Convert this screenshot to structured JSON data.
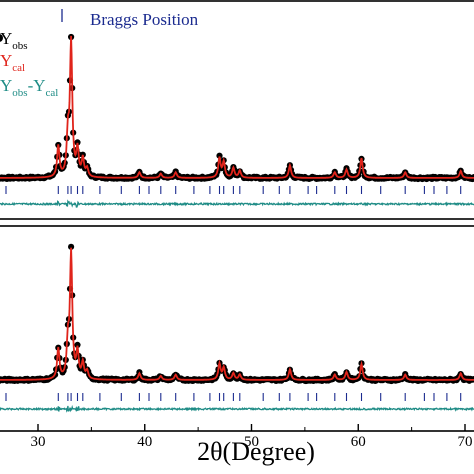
{
  "chart_data": [
    {
      "type": "line",
      "title": "",
      "legend": {
        "placement": "top-left",
        "entries": [
          {
            "label_main": "Y",
            "label_sub": "obs",
            "color": "#000000",
            "marker": "circle"
          },
          {
            "label_main": "Y",
            "label_sub": "cal",
            "color": "#e0241b",
            "marker": "line"
          },
          {
            "label_main": "Y",
            "label_sub": "obs",
            "label_mid": "-Y",
            "label_sub2": "cal",
            "color": "#1f8c86",
            "marker": "line"
          }
        ],
        "braggs_label": "Braggs Position",
        "braggs_color": "#1b2b8f"
      },
      "xlim": [
        25,
        72
      ],
      "ylim": [
        0,
        100
      ],
      "peaks": [
        {
          "x": 31.9,
          "y": 22
        },
        {
          "x": 32.8,
          "y": 28
        },
        {
          "x": 33.1,
          "y": 95
        },
        {
          "x": 33.7,
          "y": 19
        },
        {
          "x": 34.2,
          "y": 13
        },
        {
          "x": 34.6,
          "y": 6
        },
        {
          "x": 39.5,
          "y": 4
        },
        {
          "x": 41.5,
          "y": 3
        },
        {
          "x": 42.9,
          "y": 4
        },
        {
          "x": 47.0,
          "y": 14
        },
        {
          "x": 47.4,
          "y": 11
        },
        {
          "x": 48.3,
          "y": 7
        },
        {
          "x": 48.9,
          "y": 5
        },
        {
          "x": 53.6,
          "y": 9
        },
        {
          "x": 57.8,
          "y": 4
        },
        {
          "x": 58.9,
          "y": 6
        },
        {
          "x": 60.3,
          "y": 14
        },
        {
          "x": 64.4,
          "y": 4
        },
        {
          "x": 69.6,
          "y": 5
        }
      ],
      "bragg_positions": [
        26.2,
        27.0,
        31.9,
        32.8,
        33.1,
        33.7,
        34.2,
        35.8,
        37.8,
        39.5,
        40.4,
        41.5,
        42.9,
        44.6,
        46.1,
        47.0,
        47.4,
        48.3,
        48.9,
        51.1,
        52.6,
        53.6,
        55.3,
        56.1,
        57.8,
        58.9,
        60.3,
        62.1,
        64.4,
        66.2,
        67.1,
        68.3,
        69.6,
        71.0
      ]
    },
    {
      "type": "line",
      "xlabel": "2θ(Degree)",
      "xlim": [
        25,
        72
      ],
      "ylim": [
        0,
        100
      ],
      "xticks": [
        30,
        40,
        50,
        60,
        70
      ],
      "xtick_labels": [
        "30",
        "40",
        "50",
        "60",
        "70"
      ],
      "peaks": [
        {
          "x": 31.9,
          "y": 23
        },
        {
          "x": 32.8,
          "y": 26
        },
        {
          "x": 33.1,
          "y": 94
        },
        {
          "x": 33.7,
          "y": 20
        },
        {
          "x": 34.2,
          "y": 12
        },
        {
          "x": 34.6,
          "y": 6
        },
        {
          "x": 39.5,
          "y": 5
        },
        {
          "x": 41.5,
          "y": 3
        },
        {
          "x": 42.9,
          "y": 4
        },
        {
          "x": 47.0,
          "y": 12
        },
        {
          "x": 47.4,
          "y": 9
        },
        {
          "x": 48.3,
          "y": 5
        },
        {
          "x": 48.9,
          "y": 4
        },
        {
          "x": 53.6,
          "y": 8
        },
        {
          "x": 57.8,
          "y": 4
        },
        {
          "x": 58.9,
          "y": 6
        },
        {
          "x": 60.3,
          "y": 12
        },
        {
          "x": 64.4,
          "y": 4
        },
        {
          "x": 69.6,
          "y": 5
        }
      ],
      "bragg_positions": [
        26.2,
        27.0,
        31.9,
        32.8,
        33.1,
        33.7,
        34.2,
        35.8,
        37.8,
        39.5,
        40.4,
        41.5,
        42.9,
        44.6,
        46.1,
        47.0,
        47.4,
        48.3,
        48.9,
        51.1,
        52.6,
        53.6,
        55.3,
        56.1,
        57.8,
        58.9,
        60.3,
        62.1,
        64.4,
        66.2,
        67.1,
        68.3,
        69.6,
        71.0
      ]
    }
  ]
}
